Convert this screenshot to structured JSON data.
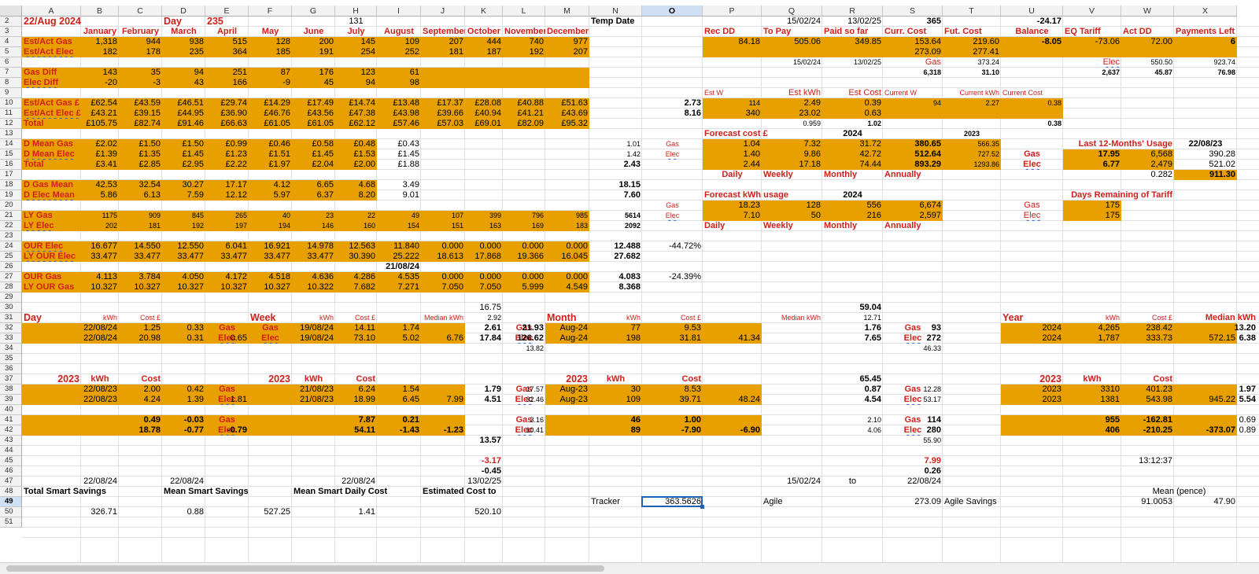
{
  "columns": [
    "A",
    "B",
    "C",
    "D",
    "E",
    "F",
    "G",
    "H",
    "I",
    "J",
    "K",
    "L",
    "M",
    "N",
    "O",
    "P",
    "Q",
    "R",
    "S",
    "T",
    "U",
    "V",
    "W",
    "X"
  ],
  "selected_column": "O",
  "rows": [
    1,
    2,
    3,
    4,
    5,
    6,
    7,
    8,
    9,
    10,
    11,
    12,
    13,
    14,
    15,
    16,
    17,
    18,
    19,
    20,
    21,
    22,
    23,
    24,
    25,
    26,
    27,
    28,
    29,
    30,
    31,
    32,
    33,
    34,
    35,
    36,
    37,
    38,
    39,
    40,
    41,
    42,
    43,
    44,
    45,
    46,
    47,
    48,
    49,
    50,
    51
  ],
  "selected_row": 49,
  "selected_cell": "O49",
  "header": {
    "date": "22/Aug 2024",
    "day_label": "Day",
    "day_number": "235",
    "h2": "131",
    "temp_date": "Temp Date",
    "q2": "15/02/24",
    "r2": "13/02/25",
    "s2": "365",
    "u2": "-24.17"
  },
  "months": [
    "January",
    "February",
    "March",
    "April",
    "May",
    "June",
    "July",
    "August",
    "September",
    "October",
    "November",
    "December"
  ],
  "right_headers": [
    "Rec DD",
    "To Pay",
    "Paid so far",
    "Curr. Cost",
    "Fut. Cost",
    "Balance",
    "EQ Tariff",
    "Act DD",
    "Payments Left"
  ],
  "labels": {
    "est_act_gas": "Est/Act Gas",
    "est_act_elec": "Est/Act Elec",
    "gas_diff": "Gas Diff",
    "elec_diff": "Elec Diff",
    "est_act_gas_gbp": "Est/Act Gas £",
    "est_act_elec_gbp": "Est/Act Elec £",
    "total": "Total",
    "d_mean_gas": "D Mean Gas",
    "d_mean_elec": "D Mean Elec",
    "d_gas_mean": "D Gas Mean",
    "d_elec_mean": "D Elec Mean",
    "ly_gas": "LY Gas",
    "ly_elec": "LY Elec",
    "our_elec": "OUR Elec",
    "ly_our_elec": "LY OUR Elec",
    "our_gas": "OUR Gas",
    "ly_our_gas": "LY OUR Gas",
    "day": "Day",
    "week": "Week",
    "month": "Month",
    "year": "Year",
    "kwh": "kWh",
    "cost_gbp": "Cost £",
    "cost": "Cost",
    "median_kwh": "Median kWh",
    "gas": "Gas",
    "elec": "Elec",
    "yr2023": "2023",
    "yr2024": "2024",
    "est_w": "Est W",
    "est_kwh": "Est  kWh",
    "est_cost": "Est Cost",
    "current_w": "Current W",
    "current_kwh": "Current kWh",
    "current_cost": "Current Cost",
    "forecast_cost": "Forecast cost £",
    "forecast_kwh": "Forecast kWh usage",
    "daily": "Daily",
    "weekly": "Weekly",
    "monthly": "Monthly",
    "annually": "Annually",
    "last12": "Last 12-Months' Usage",
    "days_remaining": "Days Remaining of Tariff",
    "total_smart_savings": "Total Smart Savings",
    "mean_smart_savings": "Mean Smart Savings",
    "mean_smart_daily_cost": "Mean Smart Daily Cost",
    "estimated_cost_to": "Estimated Cost to",
    "tracker": "Tracker",
    "agile": "Agile",
    "agile_savings": "Agile Savings",
    "mean_pence": "Mean (pence)",
    "to": "to"
  },
  "rows_data": {
    "r4": [
      "1,318",
      "944",
      "938",
      "515",
      "128",
      "200",
      "145",
      "109",
      "207",
      "444",
      "740",
      "977"
    ],
    "r5": [
      "182",
      "178",
      "235",
      "364",
      "185",
      "191",
      "254",
      "252",
      "181",
      "187",
      "192",
      "207"
    ],
    "r7": [
      "143",
      "35",
      "94",
      "251",
      "87",
      "176",
      "123",
      "61"
    ],
    "r8": [
      "-20",
      "-3",
      "43",
      "166",
      "-9",
      "45",
      "94",
      "98"
    ],
    "r10": [
      "£62.54",
      "£43.59",
      "£46.51",
      "£29.74",
      "£14.29",
      "£17.49",
      "£14.74",
      "£13.48",
      "£17.37",
      "£28.08",
      "£40.88",
      "£51.63"
    ],
    "r11": [
      "£43.21",
      "£39.15",
      "£44.95",
      "£36.90",
      "£46.76",
      "£43.56",
      "£47.38",
      "£43.98",
      "£39.66",
      "£40.94",
      "£41.21",
      "£43.69"
    ],
    "r12": [
      "£105.75",
      "£82.74",
      "£91.46",
      "£66.63",
      "£61.05",
      "£61.05",
      "£62.12",
      "£57.46",
      "£57.03",
      "£69.01",
      "£82.09",
      "£95.32"
    ],
    "r14": [
      "£2.02",
      "£1.50",
      "£1.50",
      "£0.99",
      "£0.46",
      "£0.58",
      "£0.48",
      "£0.43"
    ],
    "r15": [
      "£1.39",
      "£1.35",
      "£1.45",
      "£1.23",
      "£1.51",
      "£1.45",
      "£1.53",
      "£1.45"
    ],
    "r16": [
      "£3.41",
      "£2.85",
      "£2.95",
      "£2.22",
      "£1.97",
      "£2.04",
      "£2.00",
      "£1.88"
    ],
    "r18": [
      "42.53",
      "32.54",
      "30.27",
      "17.17",
      "4.12",
      "6.65",
      "4.68",
      "3.49"
    ],
    "r19": [
      "5.86",
      "6.13",
      "7.59",
      "12.12",
      "5.97",
      "6.37",
      "8.20",
      "9.01"
    ],
    "r21": [
      "1175",
      "909",
      "845",
      "265",
      "40",
      "23",
      "22",
      "49",
      "107",
      "399",
      "796",
      "985"
    ],
    "r22": [
      "202",
      "181",
      "192",
      "197",
      "194",
      "146",
      "160",
      "154",
      "151",
      "163",
      "169",
      "183"
    ],
    "r24": [
      "16.677",
      "14.550",
      "12.550",
      "6.041",
      "16.921",
      "14.978",
      "12.563",
      "11.840",
      "0.000",
      "0.000",
      "0.000",
      "0.000"
    ],
    "r25": [
      "33.477",
      "33.477",
      "33.477",
      "33.477",
      "33.477",
      "33.477",
      "30.390",
      "25.222",
      "18.613",
      "17.868",
      "19.366",
      "16.045"
    ],
    "r27": [
      "4.113",
      "3.784",
      "4.050",
      "4.172",
      "4.518",
      "4.636",
      "4.286",
      "4.535",
      "0.000",
      "0.000",
      "0.000",
      "0.000"
    ],
    "r28": [
      "10.327",
      "10.327",
      "10.327",
      "10.327",
      "10.327",
      "10.322",
      "7.682",
      "7.271",
      "7.050",
      "7.050",
      "5.999",
      "4.549"
    ]
  },
  "col_n": {
    "n14": "1.01",
    "n15": "1.42",
    "n16": "2.43",
    "n18": "18.15",
    "n19": "7.60",
    "n21": "5614",
    "n22": "2092",
    "n24": "12.488",
    "n25": "27.682",
    "n27": "4.083",
    "n28": "8.368"
  },
  "col_o": {
    "o10": "2.73",
    "o11": "8.16",
    "o24": "-44.72%",
    "o27": "-24.39%"
  },
  "i26": "21/08/24",
  "right_block": {
    "p4": "84.18",
    "q4": "505.06",
    "r4": "349.85",
    "s4": "153.64",
    "t4": "219.60",
    "u4": "-8.05",
    "v4": "-73.06",
    "w4": "72.00",
    "x4": "6",
    "s5": "273.09",
    "t5": "277.41",
    "q6": "15/02/24",
    "r6": "13/02/25",
    "t6": "373.24",
    "w6": "550.50",
    "x6": "923.74",
    "s7": "6,318",
    "t7": "31.10",
    "v7": "2,637",
    "w7": "45.87",
    "x7": "76.98"
  },
  "est_block": {
    "p10": "114",
    "q10": "2.49",
    "r10": "0.39",
    "s10": "94",
    "t10": "2.27",
    "u10": "0.38",
    "p11": "340",
    "q11": "23.02",
    "r11": "0.63",
    "q12": "0.959",
    "r12": "1.02",
    "u12": "0.38"
  },
  "forecast": {
    "p14": "1.04",
    "q14": "7.32",
    "r14": "31.72",
    "s14": "380.65",
    "t14": "566.35",
    "p15": "1.40",
    "q15": "9.86",
    "r15": "42.72",
    "s15": "512.64",
    "t15": "727.52",
    "p16": "2.44",
    "q16": "17.18",
    "r16": "74.44",
    "s16": "893.29",
    "t16": "1293.86",
    "p20": "18.23",
    "q20": "128",
    "r20": "556",
    "s20": "6,674",
    "p21": "7.10",
    "q21": "50",
    "r21": "216",
    "s21": "2,597"
  },
  "last12": {
    "date": "22/08/23",
    "v15": "17.95",
    "w15": "6,568",
    "x15": "390.28",
    "v16": "6.77",
    "w16": "2,479",
    "x16": "521.02",
    "w17": "0.282",
    "x17": "911.30",
    "v20": "175",
    "v21": "175"
  },
  "bottom": {
    "k30": "16.75",
    "k31": "2.92",
    "r30": "59.04",
    "r31": "12.71",
    "b32": "22/08/24",
    "c32": "1.25",
    "d32": "0.33",
    "b33": "22/08/24",
    "c33": "20.98",
    "d33": "0.31",
    "e33": "0.65",
    "g32": "19/08/24",
    "h32": "14.11",
    "i32": "1.74",
    "g33": "19/08/24",
    "h33": "73.10",
    "i33": "5.02",
    "j33": "6.76",
    "k32": "2.61",
    "l32": "21.93",
    "k33": "17.84",
    "l33": "126.62",
    "l34": "13.82",
    "m32": "Aug-24",
    "n32": "77",
    "o32": "9.53",
    "m33": "Aug-24",
    "n33": "198",
    "o33": "31.81",
    "p33": "41.34",
    "r32": "1.76",
    "s32": "93",
    "r33": "7.65",
    "s33": "272",
    "s34": "46.33",
    "u32": "2024",
    "v32": "4,265",
    "w32": "238.42",
    "y32": "13.20",
    "u33": "2024",
    "v33": "1,787",
    "w33": "333.73",
    "x33": "572.15",
    "y33": "6.38",
    "b38": "22/08/23",
    "c38": "2.00",
    "d38": "0.42",
    "b39": "22/08/23",
    "c39": "4.24",
    "d39": "1.39",
    "e39": "1.81",
    "g38": "21/08/23",
    "h38": "6.24",
    "i38": "1.54",
    "g39": "21/08/23",
    "h39": "18.99",
    "i39": "6.45",
    "j39": "7.99",
    "k38": "1.79",
    "l38": "17.57",
    "k39": "4.51",
    "l39": "32.46",
    "m38": "Aug-23",
    "n38": "30",
    "o38": "8.53",
    "m39": "Aug-23",
    "n39": "109",
    "o39": "39.71",
    "p39": "48.24",
    "r37": "65.45",
    "r38": "0.87",
    "s38": "12.28",
    "r39": "4.54",
    "s39": "53.17",
    "u38": "2023",
    "v38": "3310",
    "w38": "401.23",
    "y38": "1.97",
    "u39": "2023",
    "v39": "1381",
    "w39": "543.98",
    "x39": "945.22",
    "y39": "5.54",
    "c41": "0.49",
    "d41": "-0.03",
    "c42": "18.78",
    "d42": "-0.77",
    "e42": "-0.79",
    "h41": "7.87",
    "i41": "0.21",
    "h42": "54.11",
    "i42": "-1.43",
    "j42": "-1.23",
    "l41": "3.16",
    "l42": "10.41",
    "k43": "13.57",
    "n41": "46",
    "o41": "1.00",
    "n42": "89",
    "o42": "-7.90",
    "p42": "-6.90",
    "r41": "2.10",
    "s41": "114",
    "r42": "4.06",
    "s42": "280",
    "s43": "55.90",
    "v41": "955",
    "w41": "-162.81",
    "y41": "0.69",
    "v42": "406",
    "w42": "-210.25",
    "x42": "-373.07",
    "y42": "0.89",
    "k45": "-3.17",
    "k46": "-0.45",
    "s45": "7.99",
    "s46": "0.26",
    "w45": "13:12:37",
    "b47": "22/08/24",
    "d47": "22/08/24",
    "h47": "22/08/24",
    "k47": "13/02/25",
    "q47": "15/02/24",
    "s47": "22/08/24",
    "o49": "363.5626",
    "s49": "273.09",
    "w49": "91.0053",
    "x49": "47.90",
    "b50": "326.71",
    "d50": "0.88",
    "f50": "527.25",
    "h50": "1.41",
    "k50": "520.10"
  }
}
